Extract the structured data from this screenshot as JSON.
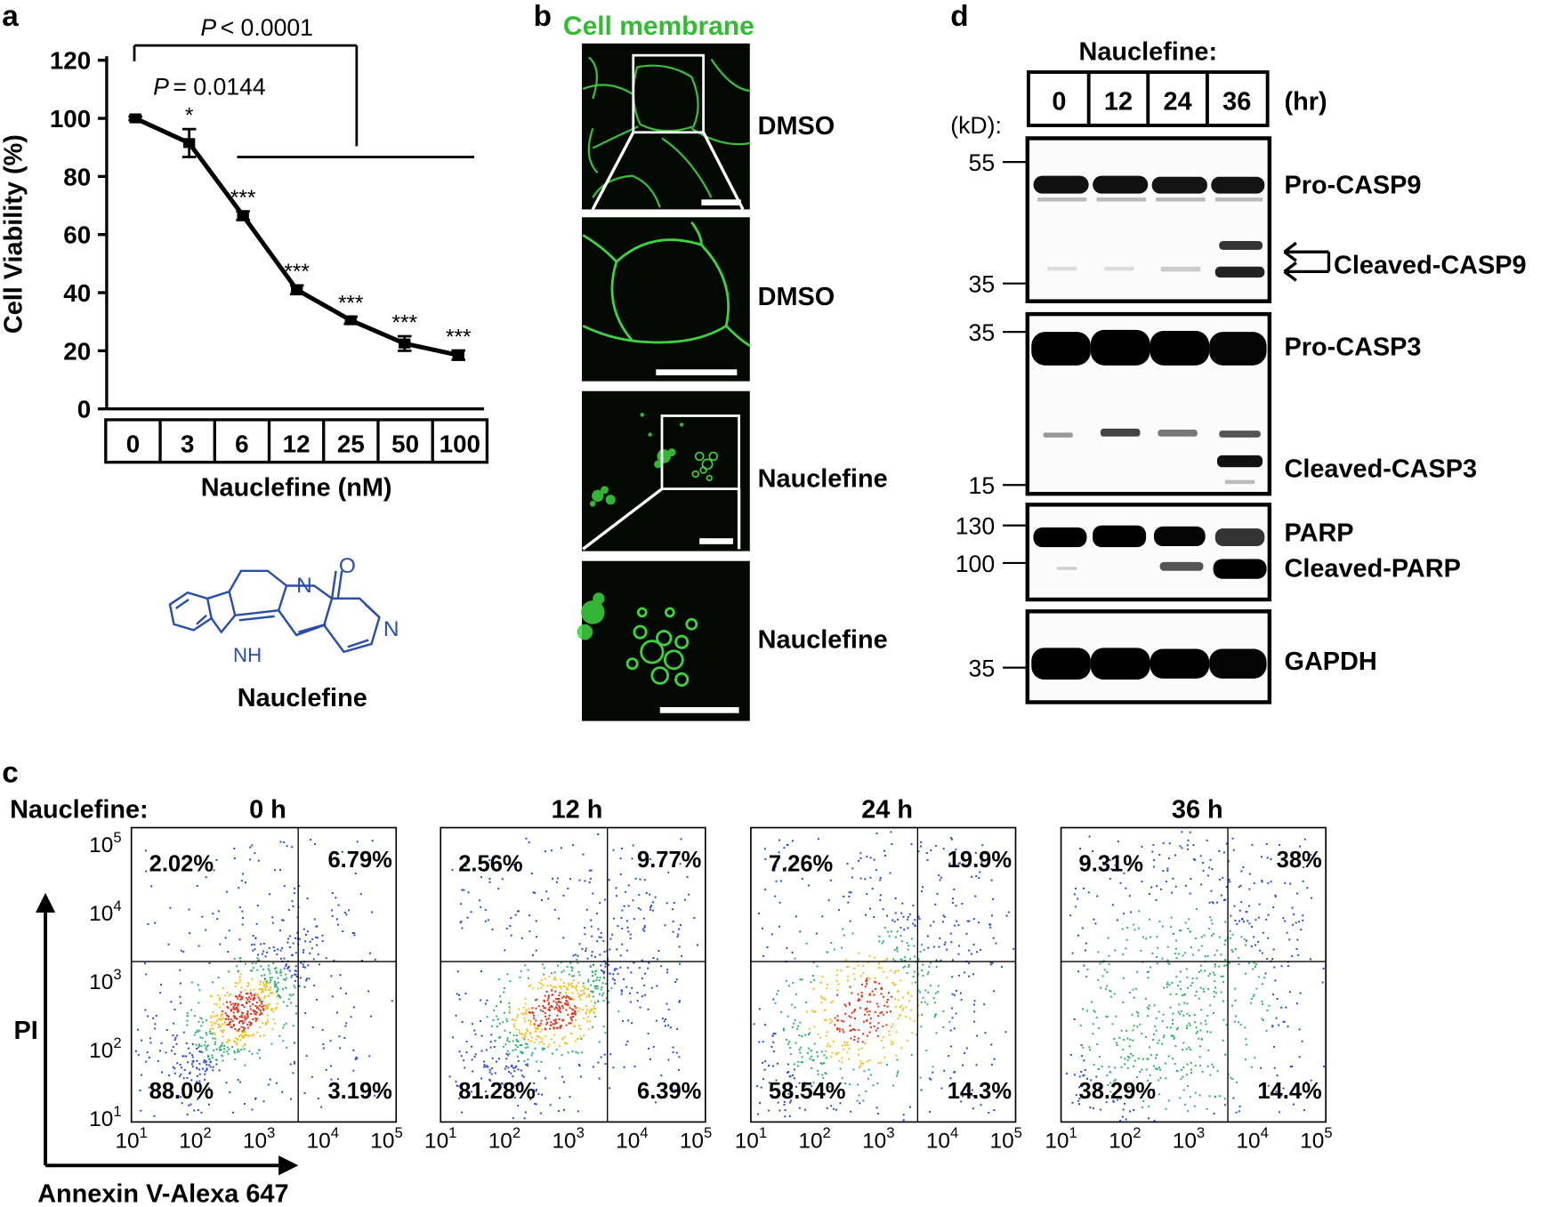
{
  "panel_labels": {
    "a": "a",
    "b": "b",
    "c": "c",
    "d": "d"
  },
  "panel_a": {
    "p_main": "< 0.0001",
    "p_first": "= 0.0144",
    "p_letter": "P",
    "chart_data": {
      "type": "line",
      "categories": [
        "0",
        "3",
        "6",
        "12",
        "25",
        "50",
        "100"
      ],
      "values": [
        100,
        91.5,
        66.5,
        41,
        30.5,
        22.5,
        18.5
      ],
      "errors": [
        0.6,
        4.8,
        1.5,
        1.5,
        1.2,
        2.5,
        1.6
      ],
      "significance": [
        "",
        "*",
        "***",
        "***",
        "***",
        "***",
        "***"
      ],
      "ylabel": "Cell Viability (%)",
      "xlabel": "Nauclefine (nM)",
      "ylim": [
        0,
        120
      ],
      "yticks": [
        "0",
        "20",
        "40",
        "60",
        "80",
        "100",
        "120"
      ]
    },
    "compound_name": "Nauclefine",
    "structure_atoms": {
      "oxygen": "O",
      "nitrogen": "N",
      "nh": "NH"
    }
  },
  "panel_b": {
    "title": "Cell membrane",
    "title_color": "#33bb33",
    "row_labels": [
      "DMSO",
      "DMSO",
      "Nauclefine",
      "Nauclefine"
    ]
  },
  "panel_c": {
    "condition_label": "Nauclefine:",
    "y_label": "PI",
    "x_label": "Annexin V-Alexa 647",
    "tick_base": "10",
    "tick_exponents": [
      "1",
      "2",
      "3",
      "4",
      "5"
    ],
    "plots": [
      {
        "time": "0 h",
        "q_ul": "2.02%",
        "q_ur": "6.79%",
        "q_ll": "88.0%",
        "q_lr": "3.19%"
      },
      {
        "time": "12 h",
        "q_ul": "2.56%",
        "q_ur": "9.77%",
        "q_ll": "81.28%",
        "q_lr": "6.39%"
      },
      {
        "time": "24 h",
        "q_ul": "7.26%",
        "q_ur": "19.9%",
        "q_ll": "58.54%",
        "q_lr": "14.3%"
      },
      {
        "time": "36 h",
        "q_ul": "9.31%",
        "q_ur": "38%",
        "q_ll": "38.29%",
        "q_lr": "14.4%"
      }
    ]
  },
  "panel_d": {
    "title": "Nauclefine:",
    "times": [
      "0",
      "12",
      "24",
      "36"
    ],
    "time_unit": "(hr)",
    "kd_label": "(kD):",
    "blots": [
      {
        "markers": [
          "55",
          "35"
        ],
        "labels": [
          "Pro-CASP9",
          "Cleaved-CASP9"
        ]
      },
      {
        "markers": [
          "35",
          "15"
        ],
        "labels": [
          "Pro-CASP3",
          "Cleaved-CASP3"
        ]
      },
      {
        "markers": [
          "130",
          "100"
        ],
        "labels": [
          "PARP",
          "Cleaved-PARP"
        ]
      },
      {
        "markers": [
          "35"
        ],
        "labels": [
          "GAPDH"
        ]
      }
    ]
  }
}
